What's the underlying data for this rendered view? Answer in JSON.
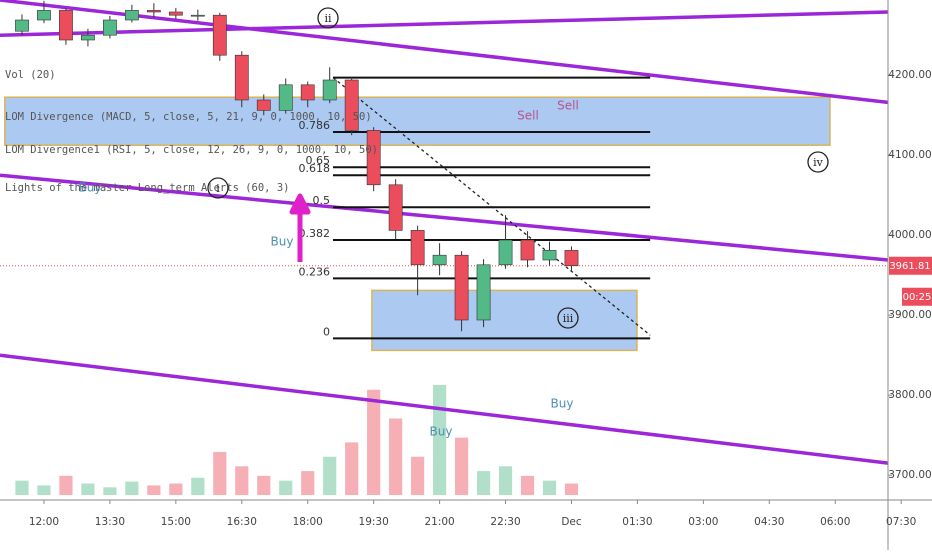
{
  "chart_data": {
    "type": "candlestick",
    "indicator_labels": [
      "Vol (20)",
      "LOM Divergence (MACD, 5, close, 5, 21, 9, 0, 1000, 10, 50)",
      "LOM Divergence1 (RSI, 5, close, 12, 26, 9, 0, 1000, 10, 50)",
      "Lights of the master Long_term Alerts (60, 3)"
    ],
    "x": [
      11.5,
      12,
      12.5,
      13,
      13.5,
      14,
      14.5,
      15,
      15.5,
      16,
      16.5,
      17,
      17.5,
      18,
      18.5,
      19,
      19.5,
      20,
      20.5,
      21,
      21.5,
      22,
      22.5,
      23,
      23.5,
      24
    ],
    "open": [
      4255,
      4269,
      4281,
      4244,
      4250,
      4269,
      4281,
      4279,
      4275,
      4275,
      4225,
      4169,
      4156,
      4188,
      4169,
      4194,
      4131,
      4063,
      4006,
      3963,
      3975,
      3894,
      3963,
      3994,
      3969,
      3981
    ],
    "high": [
      4276,
      4293,
      4284,
      4258,
      4274,
      4288,
      4290,
      4284,
      4282,
      4278,
      4230,
      4176,
      4196,
      4192,
      4210,
      4198,
      4135,
      4070,
      4012,
      3990,
      3980,
      3970,
      4025,
      4005,
      3992,
      3986
    ],
    "low": [
      4250,
      4265,
      4238,
      4236,
      4246,
      4266,
      4272,
      4270,
      4268,
      4218,
      4160,
      4150,
      4152,
      4160,
      4165,
      4125,
      4055,
      3995,
      3925,
      3950,
      3880,
      3885,
      3958,
      3960,
      3962,
      3955
    ],
    "close": [
      4269,
      4281,
      4244,
      4250,
      4269,
      4281,
      4279,
      4275,
      4275,
      4225,
      4169,
      4156,
      4188,
      4169,
      4194,
      4131,
      4063,
      4006,
      3963,
      3975,
      3894,
      3963,
      3994,
      3969,
      3981,
      3961.81
    ],
    "volume": [
      15,
      10,
      20,
      12,
      8,
      14,
      10,
      12,
      18,
      45,
      30,
      20,
      15,
      25,
      40,
      55,
      110,
      80,
      40,
      115,
      60,
      25,
      30,
      20,
      15,
      12
    ],
    "xlim": [
      11,
      31.2
    ],
    "ylim": [
      3669,
      4294
    ],
    "xticks": [
      {
        "value": 12,
        "label": "12:00"
      },
      {
        "value": 13.5,
        "label": "13:30"
      },
      {
        "value": 15,
        "label": "15:00"
      },
      {
        "value": 16.5,
        "label": "16:30"
      },
      {
        "value": 18,
        "label": "18:00"
      },
      {
        "value": 19.5,
        "label": "19:30"
      },
      {
        "value": 21,
        "label": "21:00"
      },
      {
        "value": 22.5,
        "label": "22:30"
      },
      {
        "value": 24,
        "label": "Dec"
      },
      {
        "value": 25.5,
        "label": "01:30"
      },
      {
        "value": 27,
        "label": "03:00"
      },
      {
        "value": 28.5,
        "label": "04:30"
      },
      {
        "value": 30,
        "label": "06:00"
      },
      {
        "value": 31.5,
        "label": "07:30"
      }
    ],
    "yticks": [
      {
        "value": 3700,
        "label": "3700.00"
      },
      {
        "value": 3800,
        "label": "3800.00"
      },
      {
        "value": 3900,
        "label": "3900.00"
      },
      {
        "value": 4000,
        "label": "4000.00"
      },
      {
        "value": 4100,
        "label": "4100.00"
      },
      {
        "value": 4200,
        "label": "4200.00"
      }
    ],
    "grid": false,
    "up_color": "#53b987",
    "down_color": "#eb4d5c",
    "trendline_color": "#9c27d8",
    "trendlines": [
      {
        "x": [
          11,
          31.2
        ],
        "y": [
          4250,
          4279
        ]
      },
      {
        "x": [
          11,
          31.2
        ],
        "y": [
          4294,
          4166
        ]
      },
      {
        "x": [
          11,
          31.2
        ],
        "y": [
          4075,
          3969
        ]
      },
      {
        "x": [
          11,
          31.2
        ],
        "y": [
          3850,
          3715
        ]
      }
    ],
    "dotted_line": {
      "x": [
        18.575,
        25.79
      ],
      "y": [
        4197,
        3875
      ]
    },
    "zone_color": "#90b8ec",
    "zones": [
      {
        "x": [
          11.11,
          29.88
        ],
        "y": [
          4172.5,
          4112.5
        ]
      },
      {
        "x": [
          19.46,
          25.49
        ],
        "y": [
          3931,
          3856
        ]
      }
    ],
    "fib_x": [
      18.575,
      25.79
    ],
    "fib_levels": [
      {
        "price": 4197
      },
      {
        "label": "0.786",
        "price": 4129
      },
      {
        "label": "0.65",
        "price": 4085
      },
      {
        "label": "0.618",
        "price": 4075
      },
      {
        "label": "0.5",
        "price": 4035
      },
      {
        "label": "0.382",
        "price": 3994
      },
      {
        "label": "0.236",
        "price": 3946
      },
      {
        "label": "0",
        "price": 3871
      }
    ],
    "annotations": [
      "Sell",
      "Sell",
      "Buy",
      "Buy",
      "Buy",
      "Buy"
    ],
    "wave_labels": [
      "ii",
      "iv",
      "iii",
      "i"
    ],
    "last_price": 3961.81,
    "countdown": "00:25"
  }
}
